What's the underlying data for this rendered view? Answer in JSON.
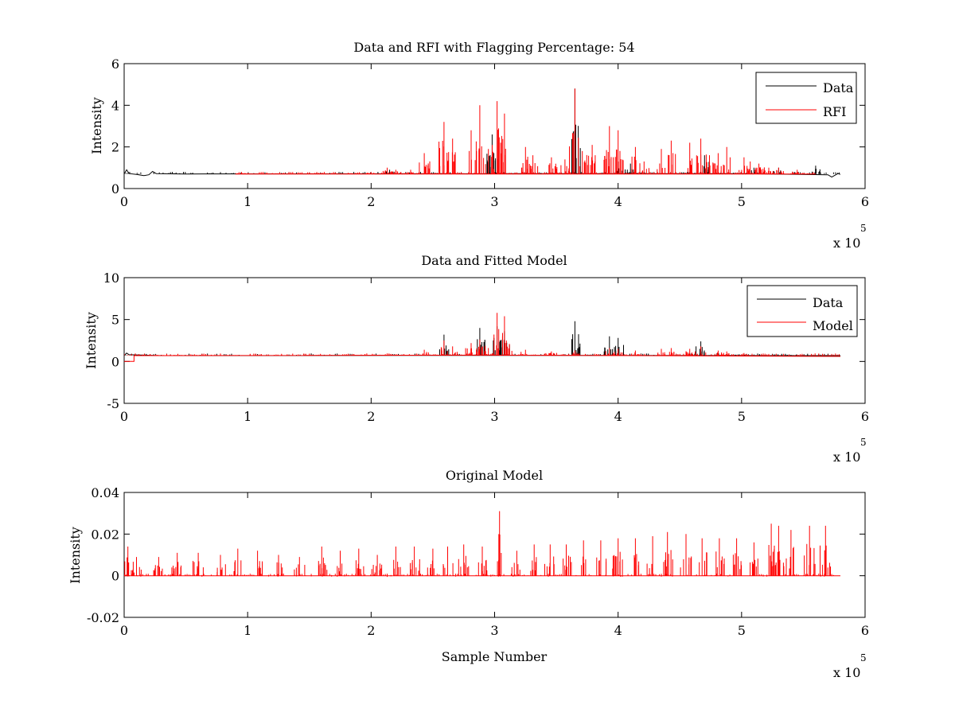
{
  "chart_data": [
    {
      "type": "line",
      "title": "Data and RFI with Flagging Percentage: 54",
      "xlabel": "",
      "ylabel": "Intensity",
      "xlim": [
        0,
        600000
      ],
      "ylim": [
        0,
        6
      ],
      "x_ticks": [
        0,
        1,
        2,
        3,
        4,
        5,
        6
      ],
      "y_ticks": [
        0,
        2,
        4,
        6
      ],
      "x_multiplier": "x 10",
      "x_multiplier_exp": "5",
      "legend_position": "top-right",
      "baseline": 0.7,
      "spike_scale": 1.0,
      "series": [
        {
          "name": "Data",
          "color": "#000000",
          "baseline_points": [
            [
              0,
              0.7
            ],
            [
              2000,
              0.9
            ],
            [
              4000,
              0.72
            ],
            [
              10000,
              0.68
            ],
            [
              16000,
              0.62
            ],
            [
              20000,
              0.66
            ],
            [
              23000,
              0.82
            ],
            [
              26000,
              0.72
            ],
            [
              50000,
              0.7
            ],
            [
              300000,
              0.72
            ],
            [
              400000,
              0.72
            ],
            [
              500000,
              0.72
            ],
            [
              570000,
              0.66
            ],
            [
              573000,
              0.55
            ],
            [
              578000,
              0.72
            ],
            [
              580000,
              0.68
            ]
          ],
          "spikes": [
            [
              215000,
              0.9
            ],
            [
              298000,
              2.6
            ],
            [
              365000,
              4.8
            ],
            [
              400000,
              1.3
            ],
            [
              410000,
              1.2
            ],
            [
              470000,
              1.6
            ],
            [
              510000,
              1.0
            ],
            [
              530000,
              1.0
            ],
            [
              560000,
              1.1
            ]
          ]
        },
        {
          "name": "RFI",
          "color": "#ff0000",
          "range": [
            90000,
            560000
          ],
          "spikes": [
            [
              95000,
              0.8
            ],
            [
              200000,
              0.8
            ],
            [
              213000,
              1.0
            ],
            [
              220000,
              0.9
            ],
            [
              232000,
              0.9
            ],
            [
              243000,
              1.7
            ],
            [
              259000,
              3.2
            ],
            [
              266000,
              2.4
            ],
            [
              281000,
              2.8
            ],
            [
              288000,
              4.0
            ],
            [
              295000,
              1.9
            ],
            [
              302000,
              4.2
            ],
            [
              308000,
              3.6
            ],
            [
              325000,
              2.0
            ],
            [
              331000,
              1.6
            ],
            [
              346000,
              1.5
            ],
            [
              357000,
              1.4
            ],
            [
              365000,
              4.8
            ],
            [
              371000,
              1.8
            ],
            [
              379000,
              2.1
            ],
            [
              393000,
              3.0
            ],
            [
              400000,
              2.8
            ],
            [
              414000,
              2.0
            ],
            [
              421000,
              1.3
            ],
            [
              435000,
              1.9
            ],
            [
              443000,
              2.3
            ],
            [
              458000,
              2.2
            ],
            [
              467000,
              2.4
            ],
            [
              474000,
              1.6
            ],
            [
              481000,
              1.7
            ],
            [
              488000,
              2.0
            ],
            [
              502000,
              1.5
            ],
            [
              507000,
              1.3
            ],
            [
              514000,
              1.2
            ],
            [
              522000,
              1.0
            ],
            [
              530000,
              1.0
            ],
            [
              545000,
              0.9
            ]
          ]
        }
      ]
    },
    {
      "type": "line",
      "title": "Data and Fitted Model",
      "xlabel": "",
      "ylabel": "Intensity",
      "xlim": [
        0,
        600000
      ],
      "ylim": [
        -5,
        10
      ],
      "x_ticks": [
        0,
        1,
        2,
        3,
        4,
        5,
        6
      ],
      "y_ticks": [
        -5,
        0,
        5,
        10
      ],
      "x_multiplier": "x 10",
      "x_multiplier_exp": "5",
      "legend_position": "top-right",
      "baseline": 0.7,
      "spike_scale": 1.0,
      "series": [
        {
          "name": "Data",
          "color": "#000000",
          "baseline_points": [
            [
              0,
              0.7
            ],
            [
              2000,
              1.0
            ],
            [
              4000,
              0.8
            ],
            [
              30000,
              0.7
            ],
            [
              300000,
              0.72
            ],
            [
              580000,
              0.7
            ]
          ],
          "spikes": [
            [
              259000,
              3.2
            ],
            [
              288000,
              4.0
            ],
            [
              302000,
              4.2
            ],
            [
              308000,
              3.6
            ],
            [
              365000,
              4.8
            ],
            [
              393000,
              3.0
            ],
            [
              400000,
              2.8
            ],
            [
              467000,
              2.4
            ]
          ]
        },
        {
          "name": "Model",
          "color": "#ff0000",
          "baseline_points": [
            [
              0,
              0.0
            ],
            [
              8000,
              0.0
            ],
            [
              8000,
              0.7
            ],
            [
              300000,
              0.75
            ],
            [
              580000,
              0.6
            ]
          ],
          "spikes": [
            [
              243000,
              1.4
            ],
            [
              259000,
              2.5
            ],
            [
              266000,
              1.8
            ],
            [
              281000,
              2.2
            ],
            [
              288000,
              2.6
            ],
            [
              295000,
              1.6
            ],
            [
              302000,
              5.8
            ],
            [
              308000,
              5.4
            ],
            [
              312000,
              2.1
            ],
            [
              325000,
              1.4
            ],
            [
              346000,
              1.2
            ],
            [
              365000,
              1.3
            ],
            [
              393000,
              1.6
            ],
            [
              400000,
              1.5
            ],
            [
              414000,
              1.3
            ],
            [
              435000,
              1.5
            ],
            [
              443000,
              1.6
            ],
            [
              458000,
              1.5
            ],
            [
              467000,
              1.8
            ],
            [
              481000,
              1.3
            ],
            [
              488000,
              1.2
            ],
            [
              502000,
              1.0
            ],
            [
              522000,
              0.9
            ],
            [
              545000,
              0.8
            ]
          ]
        }
      ]
    },
    {
      "type": "line",
      "title": "Original Model",
      "xlabel": "Sample Number",
      "ylabel": "Intensity",
      "xlim": [
        0,
        600000
      ],
      "ylim": [
        -0.02,
        0.04
      ],
      "x_ticks": [
        0,
        1,
        2,
        3,
        4,
        5,
        6
      ],
      "y_ticks": [
        -0.02,
        0,
        0.02,
        0.04
      ],
      "x_multiplier": "x 10",
      "x_multiplier_exp": "5",
      "legend_position": "none",
      "baseline": 0.0,
      "spike_scale": 1.0,
      "series": [
        {
          "name": "",
          "color": "#ff0000",
          "baseline_points": [
            [
              0,
              0.0
            ],
            [
              580000,
              0.0
            ]
          ],
          "spikes": [
            [
              3000,
              0.014
            ],
            [
              10000,
              0.009
            ],
            [
              28000,
              0.009
            ],
            [
              43000,
              0.011
            ],
            [
              60000,
              0.011
            ],
            [
              78000,
              0.01
            ],
            [
              92000,
              0.013
            ],
            [
              108000,
              0.012
            ],
            [
              125000,
              0.01
            ],
            [
              142000,
              0.009
            ],
            [
              160000,
              0.014
            ],
            [
              175000,
              0.012
            ],
            [
              190000,
              0.013
            ],
            [
              205000,
              0.01
            ],
            [
              220000,
              0.014
            ],
            [
              235000,
              0.014
            ],
            [
              250000,
              0.013
            ],
            [
              262000,
              0.014
            ],
            [
              275000,
              0.015
            ],
            [
              290000,
              0.014
            ],
            [
              304000,
              0.031
            ],
            [
              318000,
              0.012
            ],
            [
              332000,
              0.015
            ],
            [
              345000,
              0.015
            ],
            [
              358000,
              0.015
            ],
            [
              372000,
              0.017
            ],
            [
              386000,
              0.017
            ],
            [
              400000,
              0.018
            ],
            [
              414000,
              0.018
            ],
            [
              428000,
              0.019
            ],
            [
              440000,
              0.021
            ],
            [
              455000,
              0.02
            ],
            [
              468000,
              0.018
            ],
            [
              482000,
              0.018
            ],
            [
              496000,
              0.018
            ],
            [
              510000,
              0.016
            ],
            [
              524000,
              0.025
            ],
            [
              530000,
              0.024
            ],
            [
              540000,
              0.022
            ],
            [
              555000,
              0.024
            ],
            [
              568000,
              0.024
            ]
          ]
        }
      ]
    }
  ]
}
